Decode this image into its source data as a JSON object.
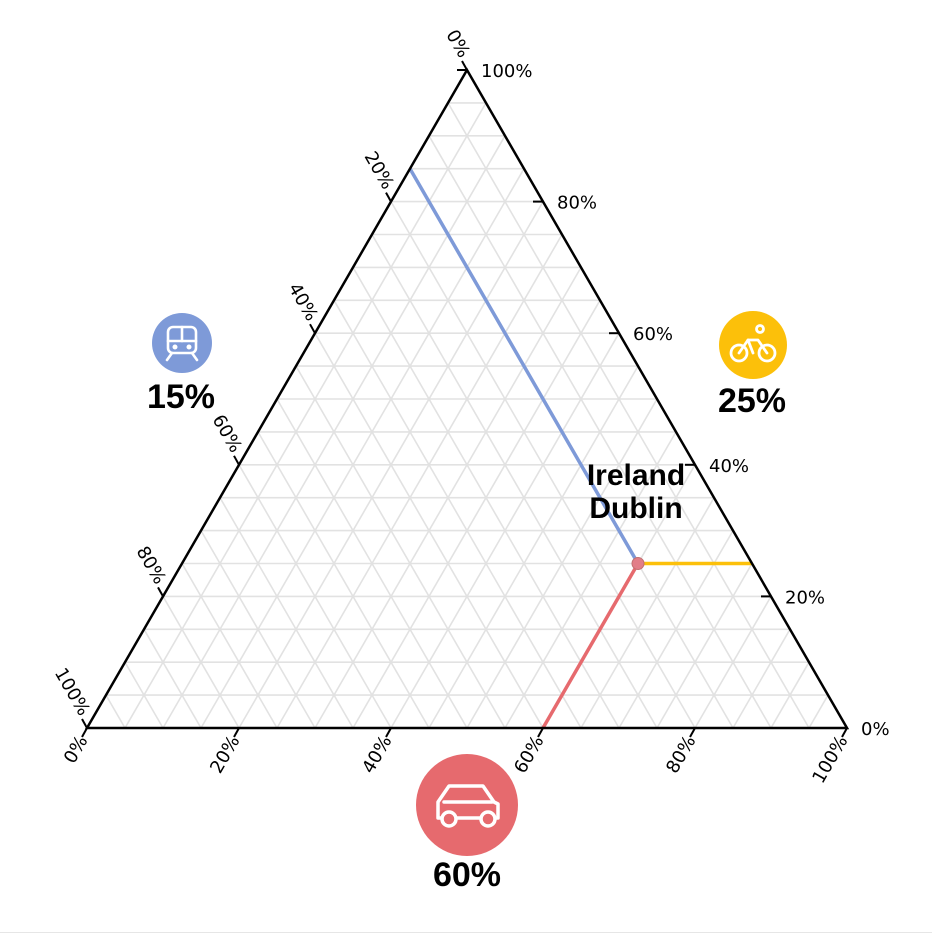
{
  "chart_data": {
    "type": "ternary",
    "axes": {
      "bike": {
        "ticks": [
          "0%",
          "20%",
          "40%",
          "60%",
          "80%",
          "100%"
        ]
      },
      "car": {
        "ticks": [
          "0%",
          "20%",
          "40%",
          "60%",
          "80%",
          "100%"
        ]
      },
      "train": {
        "ticks": [
          "0%",
          "20%",
          "40%",
          "60%",
          "80%",
          "100%"
        ]
      }
    },
    "corners": [
      {
        "key": "train",
        "icon": "train-icon",
        "color": "#7e9ad8",
        "label": "15%",
        "value": 15
      },
      {
        "key": "bike",
        "icon": "bicycle-icon",
        "color": "#fcc00a",
        "label": "25%",
        "value": 25
      },
      {
        "key": "car",
        "icon": "car-icon",
        "color": "#e66a6e",
        "label": "60%",
        "value": 60
      }
    ],
    "point": {
      "country": "Ireland",
      "city": "Dublin",
      "train": 15,
      "bike": 25,
      "car": 60
    },
    "grid": true,
    "grid_step_percent": 5
  }
}
